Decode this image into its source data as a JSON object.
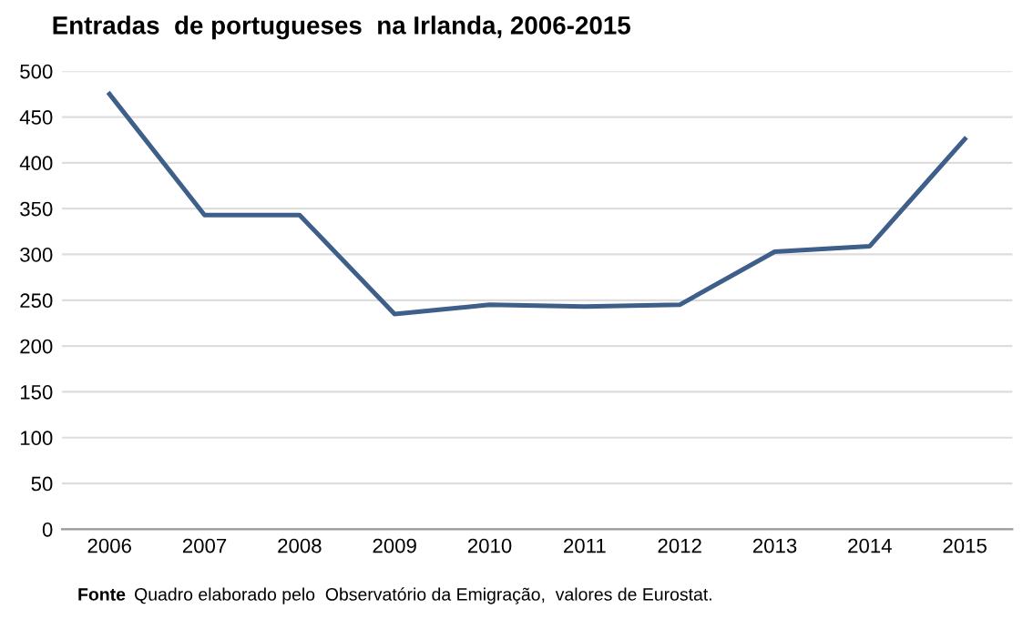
{
  "chart_data": {
    "type": "line",
    "title": "Entradas  de portugueses  na Irlanda, 2006-2015",
    "categories": [
      "2006",
      "2007",
      "2008",
      "2009",
      "2010",
      "2011",
      "2012",
      "2013",
      "2014",
      "2015"
    ],
    "series": [
      {
        "color": "#3e5f8a",
        "values": [
          475,
          343,
          343,
          235,
          245,
          243,
          245,
          303,
          309,
          426
        ]
      }
    ],
    "ylim": [
      0,
      500
    ],
    "yticks": [
      0,
      50,
      100,
      150,
      200,
      250,
      300,
      350,
      400,
      450,
      500
    ],
    "grid": "y",
    "marker": "none",
    "line_style": "solid",
    "annotations": [
      "Fonte",
      "Quadro elaborado pelo  Observatório da Emigração,  valores de Eurostat."
    ]
  }
}
